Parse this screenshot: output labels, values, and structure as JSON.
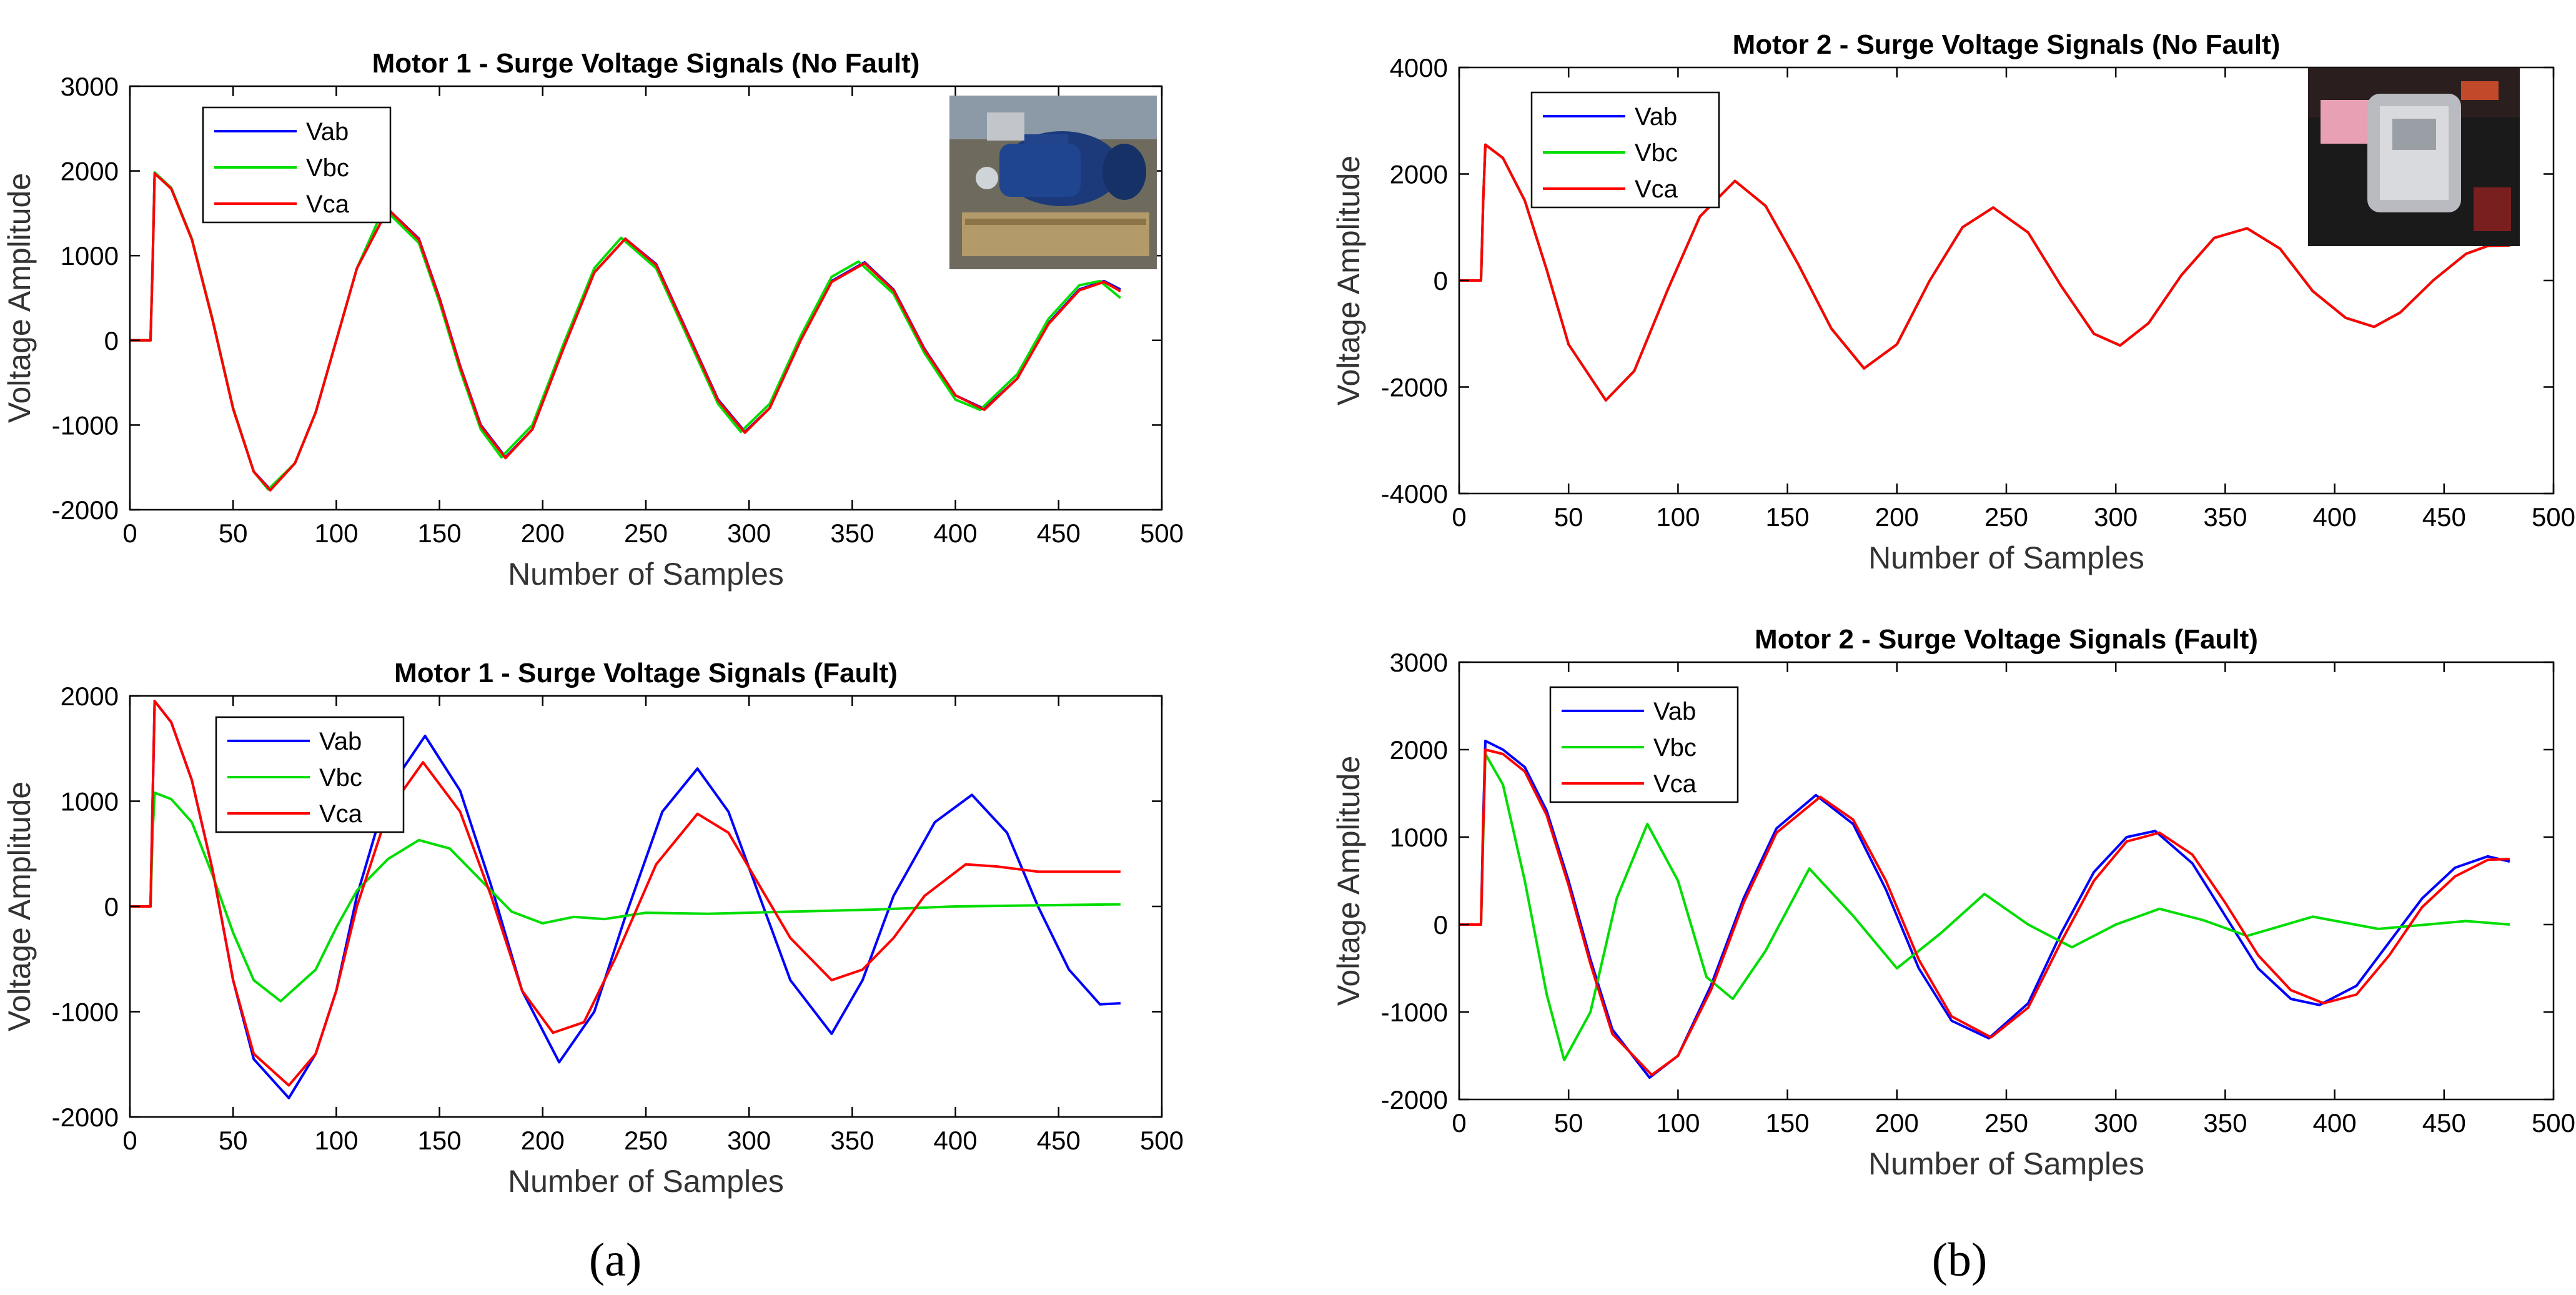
{
  "panel_labels": [
    "(a)",
    "(b)"
  ],
  "photo_icons": [
    "motor-photo-blue",
    "motor-photo-disassembled"
  ],
  "colors": {
    "Vab": "#0000ff",
    "Vbc": "#00dd00",
    "Vca": "#ff0000"
  },
  "chart_data": [
    {
      "type": "line",
      "title": "Motor 1 - Surge Voltage Signals (No Fault)",
      "xlabel": "Number of Samples",
      "ylabel": "Voltage Amplitude",
      "xlim": [
        0,
        500
      ],
      "ylim": [
        -2000,
        3000
      ],
      "xticks": [
        0,
        50,
        100,
        150,
        200,
        250,
        300,
        350,
        400,
        450,
        500
      ],
      "yticks": [
        -2000,
        -1000,
        0,
        1000,
        2000,
        3000
      ],
      "legend": "top-left",
      "grid": false,
      "series": [
        {
          "name": "Vab",
          "x": [
            0,
            10,
            11,
            12,
            20,
            30,
            40,
            50,
            60,
            68,
            80,
            90,
            100,
            110,
            125,
            140,
            150,
            160,
            170,
            182,
            195,
            210,
            225,
            240,
            255,
            270,
            285,
            298,
            310,
            325,
            340,
            356,
            370,
            385,
            400,
            414,
            430,
            445,
            460,
            472,
            480
          ],
          "y": [
            0,
            0,
            900,
            1980,
            1800,
            1200,
            250,
            -800,
            -1550,
            -1760,
            -1450,
            -850,
            0,
            850,
            1550,
            1200,
            500,
            -300,
            -1000,
            -1380,
            -1050,
            -100,
            800,
            1200,
            900,
            100,
            -700,
            -1080,
            -800,
            0,
            700,
            920,
            600,
            -100,
            -650,
            -810,
            -450,
            200,
            600,
            700,
            600
          ]
        },
        {
          "name": "Vbc",
          "x": [
            0,
            10,
            11,
            12,
            20,
            30,
            40,
            50,
            60,
            67,
            80,
            90,
            100,
            110,
            123,
            140,
            150,
            160,
            170,
            180,
            195,
            210,
            225,
            238,
            255,
            270,
            285,
            296,
            310,
            325,
            340,
            353,
            370,
            385,
            400,
            412,
            430,
            445,
            460,
            470,
            480
          ],
          "y": [
            0,
            0,
            900,
            1980,
            1800,
            1200,
            250,
            -800,
            -1550,
            -1760,
            -1450,
            -850,
            0,
            850,
            1560,
            1150,
            450,
            -350,
            -1050,
            -1380,
            -1000,
            -50,
            850,
            1210,
            850,
            50,
            -750,
            -1080,
            -750,
            50,
            750,
            930,
            550,
            -150,
            -700,
            -820,
            -400,
            250,
            650,
            700,
            500
          ]
        },
        {
          "name": "Vca",
          "x": [
            0,
            10,
            11,
            12,
            20,
            30,
            40,
            50,
            60,
            68,
            80,
            90,
            100,
            110,
            125,
            140,
            150,
            160,
            170,
            182,
            195,
            210,
            225,
            240,
            255,
            270,
            285,
            298,
            310,
            325,
            340,
            356,
            370,
            385,
            400,
            414,
            430,
            445,
            460,
            472,
            480
          ],
          "y": [
            0,
            0,
            880,
            1970,
            1790,
            1190,
            240,
            -810,
            -1550,
            -1770,
            -1450,
            -850,
            0,
            850,
            1550,
            1190,
            490,
            -310,
            -1010,
            -1390,
            -1050,
            -100,
            800,
            1200,
            890,
            90,
            -710,
            -1090,
            -800,
            0,
            690,
            910,
            590,
            -110,
            -650,
            -820,
            -450,
            190,
            590,
            690,
            580
          ]
        }
      ]
    },
    {
      "type": "line",
      "title": "Motor 1 - Surge Voltage Signals (Fault)",
      "xlabel": "Number of Samples",
      "ylabel": "Voltage Amplitude",
      "xlim": [
        0,
        500
      ],
      "ylim": [
        -2000,
        2000
      ],
      "xticks": [
        0,
        50,
        100,
        150,
        200,
        250,
        300,
        350,
        400,
        450,
        500
      ],
      "yticks": [
        -2000,
        -1000,
        0,
        1000,
        2000
      ],
      "legend": "top-left",
      "grid": false,
      "series": [
        {
          "name": "Vab",
          "x": [
            0,
            10,
            11,
            12,
            20,
            30,
            40,
            50,
            60,
            77,
            90,
            100,
            110,
            125,
            143,
            160,
            175,
            190,
            208,
            225,
            240,
            258,
            275,
            290,
            305,
            320,
            340,
            355,
            370,
            390,
            408,
            425,
            440,
            455,
            470,
            480
          ],
          "y": [
            0,
            0,
            1000,
            1950,
            1750,
            1200,
            350,
            -700,
            -1450,
            -1820,
            -1400,
            -800,
            100,
            1100,
            1620,
            1100,
            200,
            -800,
            -1480,
            -1000,
            -100,
            900,
            1310,
            900,
            100,
            -700,
            -1210,
            -700,
            100,
            800,
            1060,
            700,
            0,
            -600,
            -930,
            -920
          ]
        },
        {
          "name": "Vbc",
          "x": [
            0,
            10,
            11,
            12,
            20,
            30,
            40,
            50,
            60,
            73,
            90,
            100,
            110,
            125,
            140,
            155,
            170,
            185,
            200,
            215,
            230,
            250,
            280,
            320,
            360,
            400,
            440,
            480
          ],
          "y": [
            0,
            0,
            700,
            1080,
            1020,
            800,
            300,
            -250,
            -700,
            -900,
            -600,
            -200,
            150,
            450,
            630,
            550,
            250,
            -50,
            -160,
            -100,
            -120,
            -60,
            -70,
            -50,
            -30,
            0,
            10,
            20
          ]
        },
        {
          "name": "Vca",
          "x": [
            0,
            10,
            11,
            12,
            20,
            30,
            40,
            50,
            60,
            77,
            90,
            100,
            110,
            125,
            142,
            160,
            175,
            190,
            205,
            220,
            235,
            255,
            275,
            290,
            305,
            320,
            340,
            355,
            370,
            385,
            405,
            420,
            440,
            460,
            480
          ],
          "y": [
            0,
            0,
            1000,
            1950,
            1750,
            1200,
            350,
            -700,
            -1400,
            -1700,
            -1400,
            -800,
            0,
            900,
            1370,
            900,
            100,
            -800,
            -1200,
            -1100,
            -500,
            400,
            880,
            700,
            200,
            -300,
            -700,
            -600,
            -300,
            100,
            400,
            380,
            330,
            330,
            330
          ]
        }
      ]
    },
    {
      "type": "line",
      "title": "Motor 2 - Surge Voltage Signals (No Fault)",
      "xlabel": "Number of Samples",
      "ylabel": "Voltage Amplitude",
      "xlim": [
        0,
        500
      ],
      "ylim": [
        -4000,
        4000
      ],
      "xticks": [
        0,
        50,
        100,
        150,
        200,
        250,
        300,
        350,
        400,
        450,
        500
      ],
      "yticks": [
        -4000,
        -2000,
        0,
        2000,
        4000
      ],
      "legend": "top-left",
      "grid": false,
      "series": [
        {
          "name": "Vab",
          "x": [
            0,
            10,
            11,
            12,
            20,
            30,
            40,
            50,
            67,
            80,
            95,
            110,
            126,
            140,
            155,
            170,
            185,
            200,
            215,
            230,
            244,
            260,
            275,
            290,
            302,
            315,
            330,
            345,
            360,
            375,
            390,
            405,
            418,
            430,
            445,
            460,
            470,
            480
          ],
          "y": [
            0,
            0,
            1500,
            2550,
            2300,
            1500,
            200,
            -1200,
            -2250,
            -1700,
            -200,
            1200,
            1870,
            1400,
            300,
            -900,
            -1650,
            -1200,
            0,
            1000,
            1370,
            900,
            -100,
            -1000,
            -1220,
            -800,
            100,
            800,
            980,
            600,
            -200,
            -700,
            -870,
            -600,
            0,
            500,
            650,
            660
          ]
        },
        {
          "name": "Vbc",
          "x": [
            0,
            10,
            11,
            12,
            20,
            30,
            40,
            50,
            67,
            80,
            95,
            110,
            126,
            140,
            155,
            170,
            185,
            200,
            215,
            230,
            244,
            260,
            275,
            290,
            302,
            315,
            330,
            345,
            360,
            375,
            390,
            405,
            418,
            430,
            445,
            460,
            470,
            480
          ],
          "y": [
            0,
            0,
            1500,
            2550,
            2300,
            1500,
            200,
            -1200,
            -2250,
            -1700,
            -200,
            1200,
            1870,
            1400,
            300,
            -900,
            -1650,
            -1200,
            0,
            1000,
            1370,
            900,
            -100,
            -1000,
            -1220,
            -800,
            100,
            800,
            980,
            600,
            -200,
            -700,
            -870,
            -600,
            0,
            500,
            650,
            660
          ]
        },
        {
          "name": "Vca",
          "x": [
            0,
            10,
            11,
            12,
            20,
            30,
            40,
            50,
            67,
            80,
            95,
            110,
            126,
            140,
            155,
            170,
            185,
            200,
            215,
            230,
            244,
            260,
            275,
            290,
            302,
            315,
            330,
            345,
            360,
            375,
            390,
            405,
            418,
            430,
            445,
            460,
            470,
            480
          ],
          "y": [
            0,
            0,
            1500,
            2550,
            2300,
            1500,
            200,
            -1200,
            -2250,
            -1700,
            -200,
            1200,
            1870,
            1400,
            300,
            -900,
            -1650,
            -1200,
            0,
            1000,
            1370,
            900,
            -100,
            -1000,
            -1220,
            -800,
            100,
            800,
            980,
            600,
            -200,
            -700,
            -870,
            -600,
            0,
            500,
            650,
            660
          ]
        }
      ]
    },
    {
      "type": "line",
      "title": "Motor 2 - Surge Voltage Signals (Fault)",
      "xlabel": "Number of Samples",
      "ylabel": "Voltage Amplitude",
      "xlim": [
        0,
        500
      ],
      "ylim": [
        -2000,
        3000
      ],
      "xticks": [
        0,
        50,
        100,
        150,
        200,
        250,
        300,
        350,
        400,
        450,
        500
      ],
      "yticks": [
        -2000,
        -1000,
        0,
        1000,
        2000,
        3000
      ],
      "legend": "top-left",
      "grid": false,
      "series": [
        {
          "name": "Vab",
          "x": [
            0,
            10,
            11,
            12,
            20,
            30,
            40,
            50,
            60,
            70,
            87,
            100,
            115,
            130,
            145,
            163,
            180,
            195,
            210,
            225,
            242,
            260,
            275,
            290,
            305,
            318,
            335,
            350,
            365,
            380,
            393,
            410,
            425,
            440,
            455,
            470,
            480
          ],
          "y": [
            0,
            0,
            1200,
            2100,
            2000,
            1800,
            1300,
            500,
            -400,
            -1200,
            -1750,
            -1500,
            -700,
            300,
            1100,
            1480,
            1150,
            400,
            -500,
            -1100,
            -1300,
            -900,
            -100,
            600,
            1000,
            1070,
            700,
            100,
            -500,
            -850,
            -920,
            -700,
            -200,
            300,
            650,
            780,
            720
          ]
        },
        {
          "name": "Vbc",
          "x": [
            0,
            10,
            11,
            12,
            20,
            30,
            40,
            48,
            60,
            72,
            86,
            100,
            113,
            125,
            140,
            160,
            180,
            200,
            220,
            240,
            260,
            280,
            300,
            320,
            340,
            360,
            390,
            420,
            460,
            480
          ],
          "y": [
            0,
            0,
            1000,
            1950,
            1600,
            500,
            -800,
            -1550,
            -1000,
            300,
            1150,
            500,
            -600,
            -850,
            -300,
            640,
            100,
            -500,
            -100,
            350,
            0,
            -260,
            0,
            180,
            50,
            -130,
            90,
            -50,
            40,
            0
          ]
        },
        {
          "name": "Vca",
          "x": [
            0,
            10,
            11,
            12,
            20,
            30,
            40,
            50,
            60,
            70,
            88,
            100,
            115,
            130,
            145,
            165,
            180,
            195,
            210,
            225,
            243,
            260,
            275,
            290,
            305,
            320,
            335,
            350,
            365,
            380,
            395,
            410,
            425,
            440,
            455,
            470,
            480
          ],
          "y": [
            0,
            0,
            1100,
            2000,
            1950,
            1750,
            1250,
            450,
            -450,
            -1250,
            -1720,
            -1500,
            -750,
            250,
            1050,
            1460,
            1200,
            500,
            -400,
            -1050,
            -1290,
            -950,
            -200,
            500,
            950,
            1050,
            800,
            250,
            -350,
            -750,
            -900,
            -800,
            -350,
            200,
            550,
            740,
            750
          ]
        }
      ]
    }
  ]
}
